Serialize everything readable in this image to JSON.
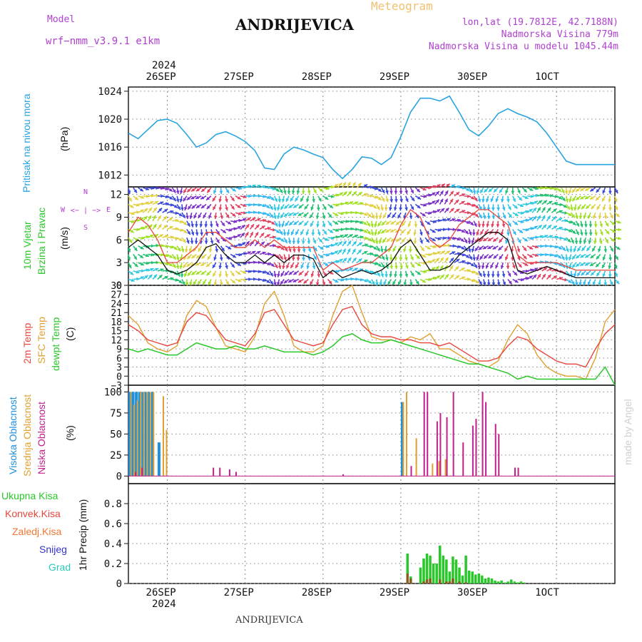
{
  "header": {
    "model_label": "Model",
    "model_name": "wrf−nmm_v3.9.1  e1km",
    "title": "ANDRIJEVICA",
    "meteogram_label": "Meteogram",
    "lonlat": "lon,lat (19.7812E, 42.7188N)",
    "altitude": "Nadmorska Visina 779m",
    "model_altitude": "Nadmorska Visina u modelu 1045.44m",
    "footer_title": "ANDRIJEVICA",
    "watermark": "made by Angel"
  },
  "colors": {
    "pressure": "#29a3e0",
    "temp2m": "#e8453c",
    "sfc": "#e0a030",
    "dew": "#28c828",
    "high_cloud": "#1e90e0",
    "mid_cloud": "#e0a030",
    "low_cloud": "#c0208a",
    "total_precip": "#28c828",
    "snow": "#3333cc",
    "grid": "#888888"
  },
  "time_axis": {
    "top_year": "2024",
    "bottom_year": "2024",
    "days": [
      "26SEP",
      "27SEP",
      "28SEP",
      "29SEP",
      "30SEP",
      "1OCT"
    ]
  },
  "panels": {
    "pressure": {
      "label": "Pritisak na nivou mora",
      "unit": "(hPa)",
      "ticks": [
        "1024",
        "1020",
        "1016",
        "1012"
      ]
    },
    "wind": {
      "label1": "10m Vjetar",
      "label2": "Brzina i Pravac",
      "unit": "(m/s)",
      "ticks": [
        "12",
        "9",
        "6",
        "3",
        "0"
      ],
      "compass": {
        "w": "W",
        "e": "E",
        "n": "N",
        "s": "S",
        "arrows": "<− | −>"
      }
    },
    "temp": {
      "label1": "2m Temp",
      "label2": "SFC Temp",
      "label3": "dewpt Temp",
      "unit": "(C)",
      "ticks": [
        "30",
        "27",
        "24",
        "21",
        "18",
        "15",
        "12",
        "9",
        "6",
        "3",
        "0",
        "−3"
      ]
    },
    "cloud": {
      "label1": "Visoka Oblacnost",
      "label2": "Srednja Oblacnost",
      "label3": "Niska Oblacnost",
      "unit": "(%)",
      "ticks": [
        "100",
        "75",
        "50",
        "25",
        "0"
      ]
    },
    "precip": {
      "legend": [
        "Ukupna Kisa",
        "Konvek.Kisa",
        "Zaledj.Kisa",
        "Snijeg",
        "Grad"
      ],
      "legend_colors": [
        "#28c828",
        "#e8453c",
        "#f07830",
        "#3333cc",
        "#2ec8b8"
      ],
      "unit": "1hr Precip (mm)",
      "ticks": [
        "0.8",
        "0.6",
        "0.4",
        "0.2",
        "0"
      ]
    }
  },
  "chart_data": [
    {
      "type": "line",
      "title": "Pritisak na nivou mora",
      "ylabel": "(hPa)",
      "ylim": [
        1010.3,
        1024.6
      ],
      "xlim": [
        0,
        150
      ],
      "x": [
        0,
        3,
        6,
        9,
        12,
        15,
        18,
        21,
        24,
        27,
        30,
        33,
        36,
        39,
        42,
        45,
        48,
        51,
        54,
        57,
        60,
        63,
        66,
        69,
        72,
        75,
        78,
        81,
        84,
        87,
        90,
        93,
        96,
        99,
        102,
        105,
        108,
        111,
        114,
        117,
        120,
        123,
        126,
        129,
        132,
        135,
        138,
        141,
        144,
        147,
        150
      ],
      "series": [
        {
          "name": "Pritisak na nivou mora",
          "values": [
            1018,
            1017.2,
            1018.5,
            1019.8,
            1020,
            1019.4,
            1017.8,
            1016,
            1016.6,
            1017.8,
            1018.2,
            1017.6,
            1016.8,
            1015.5,
            1013,
            1012.8,
            1015,
            1016,
            1015.6,
            1015,
            1014.5,
            1012.8,
            1011.5,
            1012.8,
            1014.6,
            1014.4,
            1013.5,
            1014.5,
            1017.5,
            1021,
            1023,
            1023,
            1022.6,
            1023.3,
            1021,
            1018.5,
            1017.6,
            1019,
            1020.8,
            1021.5,
            1020.8,
            1020.3,
            1019.6,
            1018,
            1016,
            1014,
            1013.5,
            1013.5,
            1013.5,
            1013.5,
            1013.5
          ]
        }
      ]
    },
    {
      "type": "line",
      "title": "10m Vjetar Brzina i Pravac",
      "ylabel": "(m/s)",
      "ylim": [
        0,
        13
      ],
      "x": [
        0,
        3,
        6,
        9,
        12,
        15,
        18,
        21,
        24,
        27,
        30,
        33,
        36,
        39,
        42,
        45,
        48,
        51,
        54,
        57,
        60,
        63,
        66,
        69,
        72,
        75,
        78,
        81,
        84,
        87,
        90,
        93,
        96,
        99,
        102,
        105,
        108,
        111,
        114,
        117,
        120,
        123,
        126,
        129,
        132,
        135,
        138,
        141,
        144,
        147,
        150
      ],
      "series": [
        {
          "name": "speed",
          "values": [
            5,
            6,
            5,
            4,
            2,
            1.5,
            2,
            3,
            5,
            5.5,
            4,
            3,
            3,
            4,
            3,
            4,
            3,
            4,
            4,
            3.5,
            1,
            2,
            1,
            1.5,
            2,
            1.5,
            2,
            3,
            5,
            6,
            4,
            2,
            2,
            2.5,
            4,
            5,
            6,
            7,
            7,
            6,
            2,
            1.5,
            2,
            2.5,
            2,
            1.5,
            1,
            1,
            1,
            1,
            1
          ]
        },
        {
          "name": "gust",
          "values": [
            7,
            9,
            8,
            6,
            3,
            3,
            4,
            5,
            7,
            7,
            6,
            5,
            5,
            6,
            5,
            6,
            5,
            5,
            5,
            5,
            2,
            3,
            2,
            2.5,
            3,
            3,
            4,
            5,
            8,
            10,
            9,
            6,
            5,
            6,
            8,
            9,
            10,
            10,
            9,
            8,
            4,
            3,
            3,
            3,
            3,
            2.5,
            2,
            2,
            2,
            2,
            2
          ]
        }
      ]
    },
    {
      "type": "line",
      "title": "Temperatura",
      "ylabel": "(C)",
      "ylim": [
        -3,
        30
      ],
      "x": [
        0,
        3,
        6,
        9,
        12,
        15,
        18,
        21,
        24,
        27,
        30,
        33,
        36,
        39,
        42,
        45,
        48,
        51,
        54,
        57,
        60,
        63,
        66,
        69,
        72,
        75,
        78,
        81,
        84,
        87,
        90,
        93,
        96,
        99,
        102,
        105,
        108,
        111,
        114,
        117,
        120,
        123,
        126,
        129,
        132,
        135,
        138,
        141,
        144,
        147,
        150
      ],
      "series": [
        {
          "name": "2m Temp",
          "values": [
            17,
            15,
            12,
            11,
            10,
            11,
            18,
            21,
            20,
            16,
            12,
            11,
            10,
            14,
            21,
            22,
            17,
            12,
            11,
            10,
            11,
            17,
            22,
            23,
            17,
            14,
            13,
            13,
            12,
            12,
            11,
            11,
            10,
            11,
            9,
            7,
            5,
            5,
            6,
            10,
            13,
            12,
            9,
            7,
            5,
            4,
            4,
            3,
            9,
            14,
            17
          ]
        },
        {
          "name": "SFC Temp",
          "values": [
            20,
            17,
            11,
            9,
            8,
            10,
            20,
            25,
            23,
            16,
            10,
            9,
            8,
            13,
            24,
            28,
            20,
            10,
            8,
            8,
            10,
            20,
            28,
            30,
            21,
            13,
            12,
            12,
            11,
            13,
            12,
            14,
            9,
            9,
            7,
            5,
            4,
            3,
            5,
            12,
            17,
            14,
            7,
            3,
            1,
            0,
            0,
            -1,
            6,
            18,
            22
          ]
        },
        {
          "name": "dewpt Temp",
          "values": [
            9,
            8,
            9,
            8,
            7,
            7,
            9,
            11,
            10,
            9,
            9,
            10,
            9,
            9,
            10,
            9,
            8,
            8,
            8,
            7,
            8,
            10,
            13,
            14,
            12,
            11,
            11,
            12,
            11,
            10,
            9,
            8,
            7,
            6,
            5,
            4,
            4,
            3,
            2,
            1,
            -1,
            0,
            -1,
            -1,
            -1,
            -1,
            -1,
            -1,
            -1,
            3,
            -3
          ]
        }
      ]
    },
    {
      "type": "bar",
      "title": "Oblacnost",
      "ylabel": "(%)",
      "ylim": [
        0,
        100
      ],
      "x_hours": [
        0,
        1,
        2,
        3,
        4,
        5,
        6,
        7,
        8,
        9,
        10,
        11,
        12,
        13,
        25,
        27,
        30,
        32,
        65,
        84,
        85,
        86,
        87,
        88,
        90,
        91,
        92,
        93,
        94,
        95,
        96,
        97,
        98,
        99,
        100,
        101,
        102,
        104,
        105,
        106,
        108,
        109,
        110,
        112,
        113,
        114,
        118,
        119,
        122,
        129,
        130,
        134
      ],
      "series": [
        {
          "name": "Visoka Oblacnost",
          "values": [
            100,
            100,
            100,
            100,
            100,
            100,
            100,
            100,
            0,
            40,
            0,
            0,
            0,
            0,
            0,
            0,
            0,
            0,
            0,
            88,
            0,
            0,
            0,
            0,
            0,
            0,
            0,
            0,
            0,
            0,
            0,
            0,
            0,
            0,
            0,
            0,
            0,
            0,
            0,
            0,
            0,
            0,
            0,
            0,
            0,
            0,
            0,
            0,
            0,
            0,
            0,
            0
          ]
        },
        {
          "name": "Srednja Oblacnost",
          "values": [
            100,
            85,
            90,
            100,
            100,
            100,
            100,
            100,
            0,
            0,
            95,
            55,
            0,
            0,
            0,
            0,
            0,
            0,
            0,
            88,
            100,
            0,
            0,
            45,
            0,
            0,
            0,
            15,
            0,
            18,
            0,
            20,
            0,
            0,
            0,
            0,
            0,
            0,
            0,
            0,
            0,
            0,
            0,
            0,
            0,
            0,
            0,
            0,
            0,
            0,
            0,
            0
          ]
        },
        {
          "name": "Niska Oblacnost",
          "values": [
            0,
            5,
            0,
            10,
            0,
            0,
            0,
            0,
            0,
            0,
            0,
            0,
            0,
            0,
            10,
            10,
            8,
            5,
            2,
            0,
            0,
            12,
            0,
            0,
            100,
            100,
            0,
            0,
            65,
            75,
            0,
            70,
            0,
            100,
            0,
            0,
            40,
            0,
            60,
            68,
            100,
            88,
            0,
            62,
            50,
            0,
            10,
            10,
            0,
            0,
            0,
            0
          ]
        }
      ]
    },
    {
      "type": "bar",
      "title": "1hr Precip",
      "ylabel": "1hr Precip (mm)",
      "ylim": [
        0,
        1.0
      ],
      "x_hours": [
        86,
        87,
        88,
        90,
        91,
        92,
        93,
        94,
        95,
        96,
        97,
        98,
        99,
        100,
        101,
        102,
        103,
        104,
        105,
        106,
        107,
        108,
        109,
        110,
        111,
        112,
        113,
        114,
        115,
        116,
        117,
        118,
        119,
        120,
        121,
        122
      ],
      "series": [
        {
          "name": "Ukupna Kisa",
          "values": [
            0.3,
            0.07,
            0.0,
            0.16,
            0.25,
            0.3,
            0.28,
            0.2,
            0.2,
            0.38,
            0.28,
            0.24,
            0.12,
            0.27,
            0.24,
            0.16,
            0.08,
            0.28,
            0.13,
            0.12,
            0.09,
            0.1,
            0.08,
            0.05,
            0.06,
            0.05,
            0.03,
            0.02,
            0.03,
            0.01,
            0.02,
            0.04,
            0.02,
            0.01,
            0.02,
            0.01
          ]
        },
        {
          "name": "Konvek.Kisa",
          "values": [
            0.1,
            0.05,
            0,
            0,
            0.02,
            0.04,
            0.05,
            0,
            0,
            0.04,
            0,
            0.02,
            0.02,
            0.05,
            0,
            0.02,
            0,
            0.01,
            0,
            0,
            0,
            0,
            0,
            0,
            0,
            0,
            0,
            0,
            0,
            0,
            0,
            0,
            0,
            0,
            0,
            0
          ]
        },
        {
          "name": "Zaledj.Kisa",
          "values": [
            0,
            0,
            0,
            0,
            0,
            0,
            0,
            0,
            0,
            0,
            0,
            0,
            0,
            0,
            0,
            0,
            0,
            0,
            0,
            0,
            0,
            0,
            0,
            0,
            0,
            0,
            0,
            0,
            0,
            0,
            0,
            0,
            0,
            0,
            0,
            0
          ]
        },
        {
          "name": "Snijeg",
          "values": [
            0,
            0,
            0,
            0,
            0,
            0,
            0,
            0,
            0,
            0,
            0,
            0,
            0,
            0,
            0,
            0,
            0,
            0,
            0,
            0,
            0,
            0,
            0,
            0,
            0,
            0,
            0,
            0,
            0,
            0,
            0,
            0,
            0,
            0,
            0,
            0
          ]
        },
        {
          "name": "Grad",
          "values": [
            0,
            0,
            0,
            0,
            0,
            0,
            0,
            0,
            0,
            0,
            0,
            0,
            0,
            0,
            0,
            0,
            0,
            0,
            0,
            0,
            0,
            0,
            0,
            0,
            0,
            0,
            0,
            0,
            0,
            0,
            0,
            0,
            0,
            0,
            0,
            0
          ]
        }
      ]
    }
  ]
}
